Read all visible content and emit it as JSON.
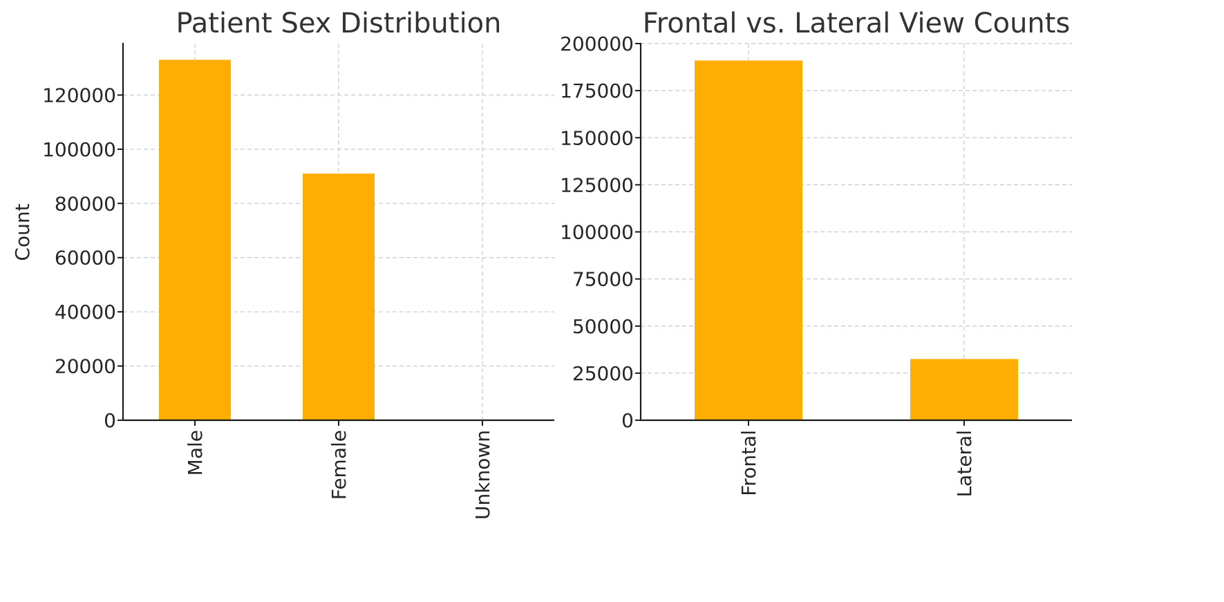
{
  "colors": {
    "bar": "#FFAE00"
  },
  "chart_data": [
    {
      "type": "bar",
      "title": "Patient Sex Distribution",
      "xlabel": "",
      "ylabel": "Count",
      "categories": [
        "Male",
        "Female",
        "Unknown"
      ],
      "values": [
        133000,
        91000,
        0
      ],
      "ylim": [
        0,
        139000
      ],
      "yticks": [
        0,
        20000,
        40000,
        60000,
        80000,
        100000,
        120000
      ],
      "ytick_labels": [
        "0",
        "20000",
        "40000",
        "60000",
        "80000",
        "100000",
        "120000"
      ],
      "grid": true
    },
    {
      "type": "bar",
      "title": "Frontal vs. Lateral View Counts",
      "xlabel": "",
      "ylabel": "",
      "categories": [
        "Frontal",
        "Lateral"
      ],
      "values": [
        191000,
        32500
      ],
      "ylim": [
        0,
        200000
      ],
      "yticks": [
        0,
        25000,
        50000,
        75000,
        100000,
        125000,
        150000,
        175000,
        200000
      ],
      "ytick_labels": [
        "0",
        "25000",
        "50000",
        "75000",
        "100000",
        "125000",
        "150000",
        "175000",
        "200000"
      ],
      "grid": true
    }
  ]
}
